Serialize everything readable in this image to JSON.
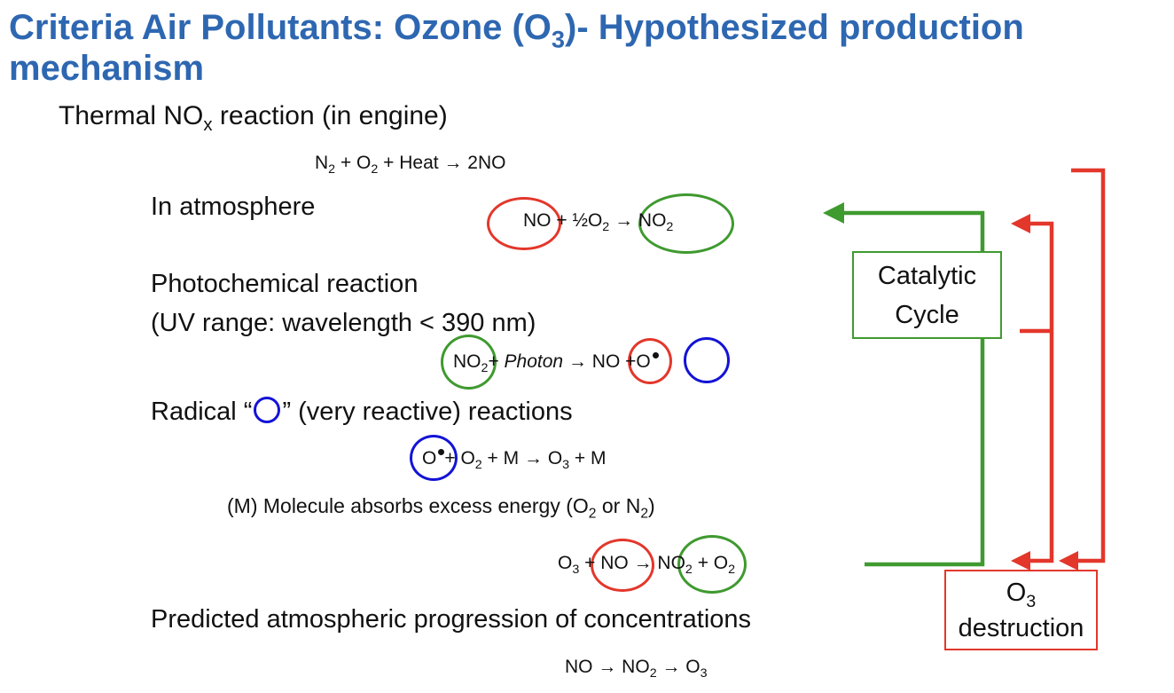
{
  "title": {
    "line1_pre": "Criteria Air Pollutants: Ozone (O",
    "line1_sub": "3",
    "line1_post": ")- Hypothesized production",
    "line2": "mechanism"
  },
  "thermal": {
    "pre": "Thermal NO",
    "sub": "x",
    "post": " reaction (in engine)"
  },
  "eq1": {
    "a": "N",
    "a_sub": "2",
    "b": " + O",
    "b_sub": "2",
    "c": " + Heat ",
    "arrow": "→",
    "d": " 2NO"
  },
  "atmosphere": {
    "label": "In atmosphere"
  },
  "eq2": {
    "no": "NO",
    "plus": "+ ½O",
    "plus_sub": "2",
    "arrow": "→",
    "no2": "NO",
    "no2_sub": "2"
  },
  "photo": {
    "line1": "Photochemical reaction",
    "line2": "(UV range: wavelength < 390 nm)"
  },
  "eq3": {
    "no2": "NO",
    "no2_sub": "2",
    "plus": "+ ",
    "photon": "Photon",
    "arrow": "→",
    "no": "NO",
    "plus2": "+",
    "o": "O"
  },
  "radical": {
    "pre": "Radical “",
    "post": "”  (very reactive) reactions"
  },
  "eq4": {
    "o": "O",
    "rest1": "+ O",
    "rest1_sub": "2",
    "rest2": "  + M ",
    "arrow": "→",
    "rest3": " O",
    "rest3_sub": "3",
    "rest4": " + M"
  },
  "m_note": {
    "pre": "(M) Molecule absorbs excess energy (O",
    "sub1": "2",
    "mid": " or N",
    "sub2": "2",
    "post": ")"
  },
  "eq5": {
    "o3": "O",
    "o3_sub": "3",
    "plus_no": "+ NO",
    "arrow": "→",
    "no2": "NO",
    "no2_sub": "2",
    "plus_o2": "+ O",
    "plus_o2_sub": "2"
  },
  "predicted": {
    "label": "Predicted atmospheric progression of concentrations"
  },
  "eq6": {
    "a": "NO ",
    "arrow1": "→",
    "b": " NO",
    "b_sub": "2",
    "arrow2": "→",
    "c": " O",
    "c_sub": "3"
  },
  "catalytic": {
    "line1": "Catalytic",
    "line2": "Cycle"
  },
  "destruction": {
    "line1": "O",
    "line1_sub": "3",
    "line2": "destruction"
  },
  "colors": {
    "title": "#2e67b1",
    "red": "#e3372b",
    "green": "#3f9a2f",
    "blue": "#1313d6"
  }
}
